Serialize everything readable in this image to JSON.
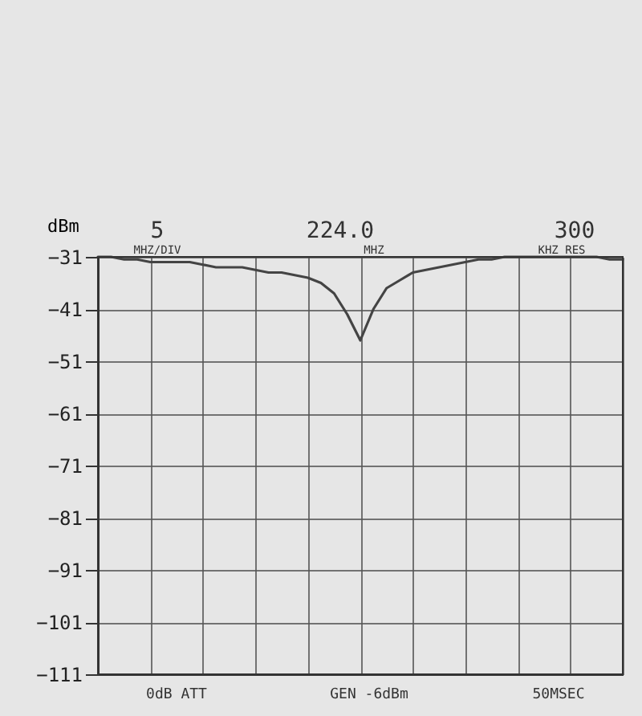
{
  "chart_data": {
    "type": "line",
    "ylabel": "dBm",
    "categories": [
      null,
      null,
      null,
      null,
      null,
      null,
      null,
      null,
      null,
      null,
      null,
      null,
      null,
      null,
      null,
      null,
      null,
      null,
      null,
      null,
      null,
      null,
      null,
      null,
      null,
      null,
      null,
      null,
      null,
      null,
      null,
      null,
      null,
      null,
      null,
      null,
      null,
      null,
      null,
      null,
      null
    ],
    "series": [
      {
        "color": "#444444",
        "values": [
          -31,
          -31,
          -31.5,
          -31.5,
          -32,
          -32,
          -32,
          -32,
          -32.5,
          -33,
          -33,
          -33,
          -33.5,
          -34,
          -34,
          -34.5,
          -35,
          -36,
          -38,
          -42,
          -47,
          -41,
          -37,
          -35.5,
          -34,
          -33.5,
          -33,
          -32.5,
          -32,
          -31.5,
          -31.5,
          -31,
          -31,
          -31,
          -31,
          -31,
          -31,
          -31,
          -31,
          -31.5,
          -31.5
        ]
      }
    ],
    "ylim": [
      -111,
      -31
    ],
    "yticks": [
      -31,
      -41,
      -51,
      -61,
      -71,
      -81,
      -91,
      -101,
      -111
    ],
    "grid": true,
    "tick_labels": "y",
    "marker": "none",
    "line_style": "solid",
    "annotations": [
      "5",
      "MHZ/DIV",
      "224.0",
      "MHZ",
      "300",
      "KHZ RES",
      "0dB ATT",
      "GEN -6dBm",
      "50MSEC"
    ]
  }
}
